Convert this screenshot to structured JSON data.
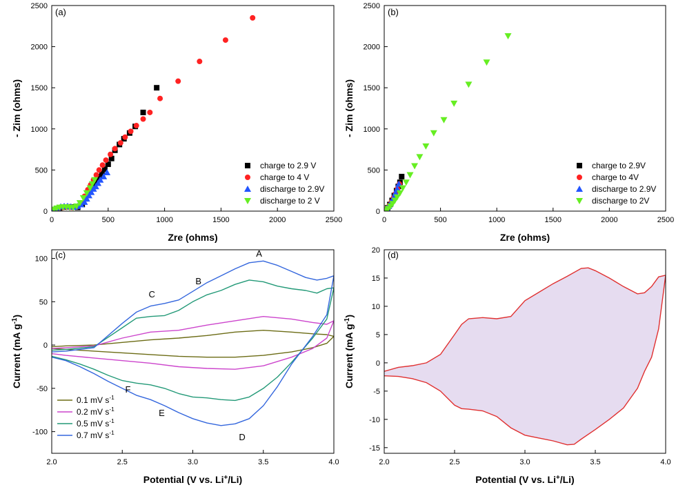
{
  "chart_data": [
    {
      "type": "scatter",
      "panel_label": "(a)",
      "xlabel": "Zre (ohms)",
      "ylabel": "- Zim (ohms)",
      "xlim": [
        0,
        2500
      ],
      "ylim": [
        0,
        2500
      ],
      "xticks": [
        0,
        500,
        1000,
        1500,
        2000,
        2500
      ],
      "yticks": [
        0,
        500,
        1000,
        1500,
        2000,
        2500
      ],
      "legend_position": "bottom-right",
      "series": [
        {
          "name": "charge to 2.9 V",
          "marker": "square",
          "color": "#000000",
          "x": [
            30,
            70,
            110,
            150,
            190,
            230,
            270,
            300,
            330,
            355,
            375,
            395,
            420,
            445,
            470,
            500,
            530,
            560,
            600,
            640,
            690,
            740,
            810,
            930
          ],
          "y": [
            20,
            40,
            50,
            52,
            50,
            45,
            80,
            150,
            230,
            290,
            320,
            360,
            420,
            460,
            510,
            570,
            640,
            740,
            810,
            880,
            950,
            1030,
            1200,
            1500
          ]
        },
        {
          "name": "charge to 4 V",
          "marker": "circle",
          "color": "#ff2222",
          "x": [
            25,
            60,
            100,
            140,
            180,
            220,
            260,
            290,
            320,
            345,
            370,
            395,
            420,
            450,
            480,
            520,
            560,
            610,
            650,
            700,
            750,
            810,
            870,
            960,
            1120,
            1310,
            1540,
            1780
          ],
          "y": [
            20,
            35,
            45,
            50,
            45,
            50,
            100,
            180,
            260,
            320,
            380,
            440,
            500,
            560,
            620,
            690,
            760,
            830,
            900,
            970,
            1040,
            1120,
            1200,
            1370,
            1580,
            1820,
            2080,
            2350
          ]
        },
        {
          "name": "discharge to 2.9V",
          "marker": "triangle-up",
          "color": "#2255ff",
          "x": [
            20,
            50,
            80,
            110,
            140,
            170,
            200,
            230,
            260,
            290,
            310,
            330,
            350,
            370,
            390,
            410,
            430,
            460,
            490
          ],
          "y": [
            20,
            40,
            55,
            60,
            60,
            55,
            50,
            60,
            80,
            110,
            150,
            190,
            230,
            270,
            300,
            340,
            380,
            420,
            470
          ]
        },
        {
          "name": "discharge to 2 V",
          "marker": "triangle-down",
          "color": "#66ee22",
          "x": [
            20,
            45,
            70,
            100,
            130,
            160,
            190,
            220,
            250,
            280,
            310,
            340,
            360,
            380
          ],
          "y": [
            20,
            35,
            45,
            50,
            50,
            45,
            45,
            60,
            100,
            160,
            220,
            280,
            330,
            380
          ]
        }
      ]
    },
    {
      "type": "scatter",
      "panel_label": "(b)",
      "xlabel": "Zre (ohms)",
      "ylabel": "- Zim (ohms)",
      "xlim": [
        0,
        2500
      ],
      "ylim": [
        0,
        2500
      ],
      "xticks": [
        0,
        500,
        1000,
        1500,
        2000,
        2500
      ],
      "yticks": [
        0,
        500,
        1000,
        1500,
        2000,
        2500
      ],
      "legend_position": "bottom-right",
      "series": [
        {
          "name": "charge to 2.9V",
          "marker": "square",
          "color": "#000000",
          "x": [
            10,
            30,
            50,
            70,
            90,
            110,
            125,
            140,
            155
          ],
          "y": [
            10,
            40,
            80,
            130,
            190,
            250,
            300,
            350,
            420
          ]
        },
        {
          "name": "charge to 4V",
          "marker": "circle",
          "color": "#ff2222",
          "x": [
            10,
            28,
            46,
            64,
            82,
            100,
            118,
            135
          ],
          "y": [
            10,
            35,
            70,
            110,
            160,
            210,
            270,
            330
          ]
        },
        {
          "name": "discharge to 2.9V",
          "marker": "triangle-up",
          "color": "#2255ff",
          "x": [
            10,
            25,
            40,
            55,
            70,
            85,
            100,
            115,
            130
          ],
          "y": [
            10,
            30,
            60,
            90,
            130,
            170,
            220,
            270,
            330
          ]
        },
        {
          "name": "discharge to 2V",
          "marker": "triangle-down",
          "color": "#66ee22",
          "x": [
            15,
            35,
            55,
            75,
            95,
            115,
            140,
            165,
            195,
            230,
            270,
            315,
            370,
            440,
            530,
            620,
            750,
            910,
            1100
          ],
          "y": [
            10,
            30,
            60,
            90,
            130,
            170,
            220,
            280,
            350,
            440,
            550,
            660,
            790,
            950,
            1110,
            1310,
            1540,
            1810,
            2130
          ]
        }
      ]
    },
    {
      "type": "line",
      "panel_label": "(c)",
      "xlabel": "Potential (V vs. Li+/Li)",
      "ylabel": "Current (mA g-1)",
      "xlim": [
        2.0,
        4.0
      ],
      "ylim": [
        -125,
        110
      ],
      "xticks": [
        2.0,
        2.5,
        3.0,
        3.5,
        4.0
      ],
      "yticks": [
        -100,
        -50,
        0,
        50,
        100
      ],
      "legend_position": "bottom-left",
      "annotations": [
        {
          "label": "A",
          "x": 3.47,
          "y": 102
        },
        {
          "label": "B",
          "x": 3.04,
          "y": 70
        },
        {
          "label": "C",
          "x": 2.71,
          "y": 55
        },
        {
          "label": "D",
          "x": 3.35,
          "y": -110
        },
        {
          "label": "E",
          "x": 2.78,
          "y": -82
        },
        {
          "label": "F",
          "x": 2.54,
          "y": -55
        }
      ],
      "series": [
        {
          "name": "0.1 mV s-1",
          "color": "#6b6b14",
          "x": [
            2.0,
            2.1,
            2.3,
            2.5,
            2.7,
            2.9,
            3.1,
            3.3,
            3.5,
            3.7,
            3.85,
            3.95,
            4.0,
            3.95,
            3.85,
            3.7,
            3.5,
            3.3,
            3.1,
            2.9,
            2.7,
            2.5,
            2.3,
            2.1,
            2.0
          ],
          "y": [
            -2,
            -1,
            0,
            3,
            6,
            8,
            11,
            15,
            17,
            15,
            13,
            12,
            10,
            2,
            -3,
            -8,
            -12,
            -14,
            -14,
            -13,
            -11,
            -9,
            -7,
            -5,
            -4
          ]
        },
        {
          "name": "0.2 mV s-1",
          "color": "#cc44cc",
          "x": [
            2.0,
            2.1,
            2.3,
            2.5,
            2.7,
            2.9,
            3.1,
            3.3,
            3.5,
            3.7,
            3.85,
            3.95,
            4.0,
            3.95,
            3.85,
            3.7,
            3.5,
            3.3,
            3.1,
            2.9,
            2.7,
            2.5,
            2.3,
            2.1,
            2.0
          ],
          "y": [
            -4,
            -3,
            -1,
            8,
            15,
            17,
            23,
            28,
            33,
            30,
            26,
            24,
            28,
            8,
            -4,
            -14,
            -24,
            -28,
            -27,
            -25,
            -21,
            -18,
            -15,
            -12,
            -10
          ]
        },
        {
          "name": "0.5 mV s-1",
          "color": "#229977",
          "x": [
            2.0,
            2.1,
            2.3,
            2.5,
            2.6,
            2.7,
            2.8,
            2.9,
            3.0,
            3.1,
            3.2,
            3.3,
            3.4,
            3.5,
            3.6,
            3.7,
            3.8,
            3.88,
            3.95,
            4.0,
            3.95,
            3.85,
            3.7,
            3.6,
            3.5,
            3.4,
            3.3,
            3.2,
            3.1,
            3.0,
            2.9,
            2.8,
            2.7,
            2.6,
            2.5,
            2.4,
            2.3,
            2.2,
            2.1,
            2.0
          ],
          "y": [
            -6,
            -5,
            -2,
            20,
            31,
            33,
            34,
            40,
            50,
            58,
            63,
            70,
            75,
            73,
            68,
            65,
            63,
            60,
            65,
            66,
            30,
            8,
            -20,
            -37,
            -50,
            -60,
            -64,
            -63,
            -61,
            -60,
            -56,
            -50,
            -46,
            -44,
            -41,
            -35,
            -28,
            -22,
            -17,
            -13
          ]
        },
        {
          "name": "0.7 mV s-1",
          "color": "#3366dd",
          "x": [
            2.0,
            2.1,
            2.3,
            2.5,
            2.6,
            2.7,
            2.8,
            2.9,
            3.0,
            3.1,
            3.2,
            3.3,
            3.4,
            3.5,
            3.6,
            3.7,
            3.8,
            3.88,
            3.95,
            4.0,
            3.95,
            3.85,
            3.7,
            3.6,
            3.5,
            3.4,
            3.3,
            3.2,
            3.1,
            3.0,
            2.9,
            2.8,
            2.7,
            2.6,
            2.5,
            2.4,
            2.3,
            2.2,
            2.1,
            2.0
          ],
          "y": [
            -8,
            -7,
            -3,
            25,
            38,
            45,
            48,
            52,
            62,
            72,
            80,
            88,
            95,
            97,
            92,
            85,
            78,
            75,
            77,
            80,
            35,
            10,
            -22,
            -48,
            -70,
            -85,
            -91,
            -93,
            -90,
            -85,
            -78,
            -70,
            -63,
            -58,
            -50,
            -42,
            -33,
            -25,
            -18,
            -14
          ]
        }
      ]
    },
    {
      "type": "area",
      "panel_label": "(d)",
      "xlabel": "Potential (V vs. Li+/Li)",
      "ylabel": "Current (mA g-1)",
      "xlim": [
        2.0,
        4.0
      ],
      "ylim": [
        -16,
        20
      ],
      "xticks": [
        2.0,
        2.5,
        3.0,
        3.5,
        4.0
      ],
      "yticks": [
        -15,
        -10,
        -5,
        0,
        5,
        10,
        15,
        20
      ],
      "line_color": "#e03030",
      "fill_color": "#e6dcf0",
      "upper": {
        "x": [
          2.0,
          2.1,
          2.2,
          2.3,
          2.4,
          2.5,
          2.55,
          2.6,
          2.7,
          2.8,
          2.9,
          3.0,
          3.1,
          3.2,
          3.3,
          3.4,
          3.45,
          3.5,
          3.6,
          3.7,
          3.8,
          3.85,
          3.9,
          3.95,
          4.0
        ],
        "y": [
          -1.5,
          -0.8,
          -0.5,
          0,
          1.5,
          5,
          6.8,
          7.8,
          8,
          7.8,
          8.2,
          11,
          12.5,
          14,
          15.3,
          16.7,
          16.8,
          16.3,
          15,
          13.5,
          12.2,
          12.4,
          13.5,
          15.2,
          15.5
        ]
      },
      "lower": {
        "x": [
          2.0,
          2.1,
          2.2,
          2.3,
          2.4,
          2.5,
          2.55,
          2.6,
          2.7,
          2.8,
          2.9,
          3.0,
          3.1,
          3.2,
          3.3,
          3.35,
          3.4,
          3.5,
          3.6,
          3.7,
          3.8,
          3.85,
          3.9,
          3.95,
          4.0
        ],
        "y": [
          -2.3,
          -2.4,
          -2.8,
          -3.5,
          -5,
          -7.5,
          -8.1,
          -8.2,
          -8.5,
          -9.5,
          -11.5,
          -12.8,
          -13.3,
          -13.8,
          -14.5,
          -14.4,
          -13.5,
          -11.8,
          -10,
          -8,
          -4.5,
          -1.5,
          1,
          6,
          15.5
        ]
      }
    }
  ]
}
